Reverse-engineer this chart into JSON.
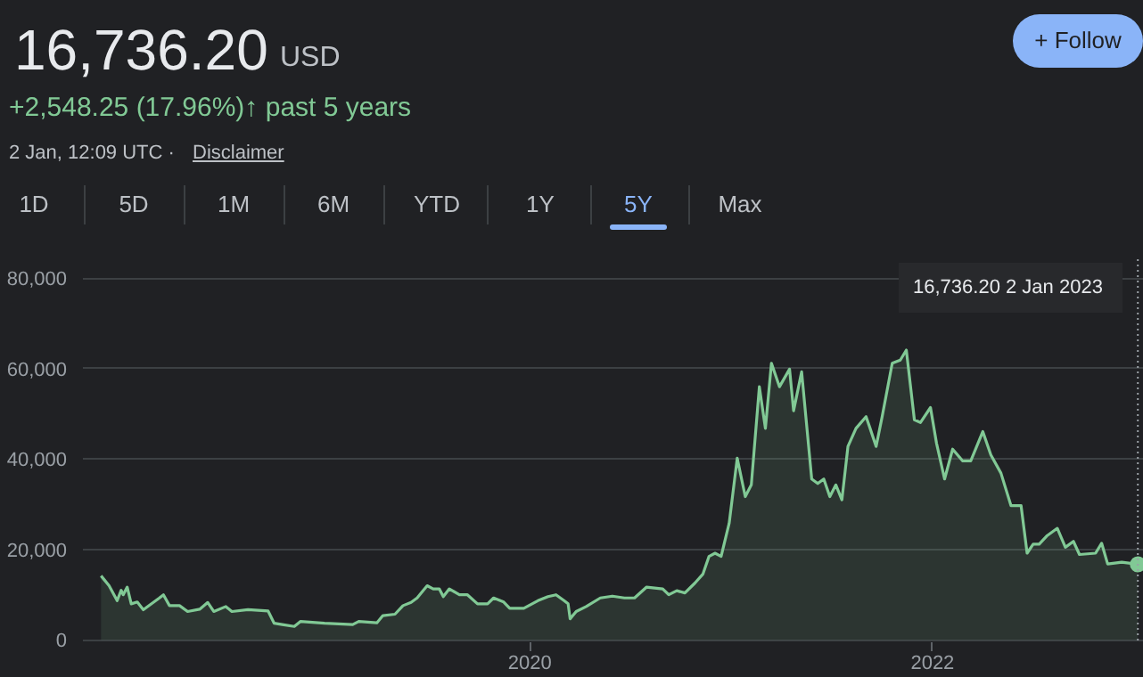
{
  "chart_data": {
    "type": "area",
    "title": "16,736.20",
    "annotations": [
      "USD",
      "+2,548.25 (17.96%)↑ past 5 years",
      "2 Jan, 12:09 UTC ·",
      "Disclaimer",
      "+ Follow",
      "1D",
      "5D",
      "1M",
      "6M",
      "YTD",
      "1Y",
      "5Y",
      "Max",
      "16,736.20  2 Jan 2023"
    ],
    "x": [
      2017.87,
      2017.91,
      2017.95,
      2017.97,
      2017.98,
      2018.0,
      2018.02,
      2018.05,
      2018.08,
      2018.16,
      2018.18,
      2018.21,
      2018.26,
      2018.3,
      2018.36,
      2018.4,
      2018.43,
      2018.49,
      2018.52,
      2018.6,
      2018.7,
      2018.73,
      2018.77,
      2018.83,
      2018.86,
      2018.98,
      2019.12,
      2019.15,
      2019.24,
      2019.27,
      2019.33,
      2019.37,
      2019.41,
      2019.44,
      2019.49,
      2019.52,
      2019.55,
      2019.57,
      2019.6,
      2019.65,
      2019.69,
      2019.74,
      2019.79,
      2019.82,
      2019.87,
      2019.9,
      2019.97,
      2020.04,
      2020.09,
      2020.13,
      2020.17,
      2020.19,
      2020.2,
      2020.23,
      2020.28,
      2020.35,
      2020.41,
      2020.47,
      2020.52,
      2020.58,
      2020.66,
      2020.69,
      2020.73,
      2020.77,
      2020.82,
      2020.86,
      2020.89,
      2020.92,
      2020.95,
      2020.99,
      2021.03,
      2021.07,
      2021.1,
      2021.14,
      2021.17,
      2021.2,
      2021.24,
      2021.29,
      2021.31,
      2021.35,
      2021.4,
      2021.43,
      2021.46,
      2021.49,
      2021.52,
      2021.55,
      2021.58,
      2021.62,
      2021.67,
      2021.69,
      2021.72,
      2021.75,
      2021.8,
      2021.84,
      2021.87,
      2021.91,
      2021.94,
      2021.99,
      2022.02,
      2022.06,
      2022.1,
      2022.15,
      2022.19,
      2022.25,
      2022.29,
      2022.34,
      2022.39,
      2022.44,
      2022.47,
      2022.5,
      2022.53,
      2022.57,
      2022.62,
      2022.66,
      2022.7,
      2022.73,
      2022.81,
      2022.84,
      2022.87,
      2022.94,
      2023.02
    ],
    "series": [
      {
        "color": "#81c995",
        "values": [
          14200,
          12000,
          8700,
          11000,
          10000,
          11700,
          8000,
          8400,
          6700,
          9300,
          10000,
          7600,
          7600,
          6300,
          6800,
          8300,
          6300,
          7400,
          6300,
          6700,
          6400,
          3700,
          3400,
          3000,
          4100,
          3700,
          3400,
          4100,
          3800,
          5400,
          5700,
          7600,
          8300,
          9300,
          12000,
          11300,
          11300,
          9600,
          11300,
          10000,
          10000,
          8000,
          8000,
          9300,
          8400,
          7000,
          7000,
          8700,
          9600,
          10000,
          8700,
          8000,
          4700,
          6300,
          7400,
          9300,
          9700,
          9300,
          9300,
          11700,
          11300,
          10000,
          10900,
          10400,
          12600,
          14600,
          18500,
          19200,
          18500,
          25800,
          40200,
          31700,
          34300,
          56000,
          46800,
          61200,
          56000,
          59900,
          50700,
          59300,
          35600,
          34600,
          35600,
          31700,
          34300,
          31000,
          42800,
          46800,
          49400,
          46800,
          42800,
          49400,
          61200,
          61900,
          64100,
          48700,
          48100,
          51400,
          43500,
          35600,
          42200,
          39600,
          39600,
          46100,
          40900,
          36900,
          29700,
          29700,
          19200,
          21200,
          21200,
          23100,
          24700,
          20500,
          21800,
          18900,
          19200,
          21400,
          16800,
          17200,
          16736.2
        ]
      }
    ],
    "xlim": [
      2017.78,
      2023.05
    ],
    "xticks": [
      2020,
      2022
    ],
    "ylim": [
      -500,
      84200
    ],
    "yticks": [
      {
        "value": 0,
        "label": "0"
      },
      {
        "value": 20000,
        "label": "20,000"
      },
      {
        "value": 40000,
        "label": "40,000"
      },
      {
        "value": 60000,
        "label": "60,000"
      },
      {
        "value": 80000,
        "label": "80,000"
      }
    ],
    "ref_lines": [
      {
        "axis": "x",
        "value": 2023.02,
        "color": "#9aa0a6",
        "line_style": "dotted"
      }
    ],
    "grid": "y"
  }
}
